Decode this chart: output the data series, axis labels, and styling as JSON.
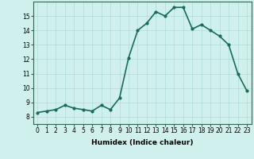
{
  "x": [
    0,
    1,
    2,
    3,
    4,
    5,
    6,
    7,
    8,
    9,
    10,
    11,
    12,
    13,
    14,
    15,
    16,
    17,
    18,
    19,
    20,
    21,
    22,
    23
  ],
  "y": [
    8.3,
    8.4,
    8.5,
    8.8,
    8.6,
    8.5,
    8.4,
    8.8,
    8.5,
    9.3,
    12.1,
    14.0,
    14.5,
    15.3,
    15.0,
    15.6,
    15.6,
    14.1,
    14.4,
    14.0,
    13.6,
    13.0,
    11.0,
    9.8
  ],
  "line_color": "#1a6b5a",
  "marker": "o",
  "marker_size": 2.0,
  "bg_color": "#cff0ec",
  "grid_color": "#b0ddd8",
  "xlabel": "Humidex (Indice chaleur)",
  "xlim": [
    -0.5,
    23.5
  ],
  "ylim": [
    7.5,
    16.0
  ],
  "yticks": [
    8,
    9,
    10,
    11,
    12,
    13,
    14,
    15
  ],
  "xticks": [
    0,
    1,
    2,
    3,
    4,
    5,
    6,
    7,
    8,
    9,
    10,
    11,
    12,
    13,
    14,
    15,
    16,
    17,
    18,
    19,
    20,
    21,
    22,
    23
  ],
  "xlabel_fontsize": 6.5,
  "tick_fontsize": 5.5,
  "linewidth": 1.2
}
